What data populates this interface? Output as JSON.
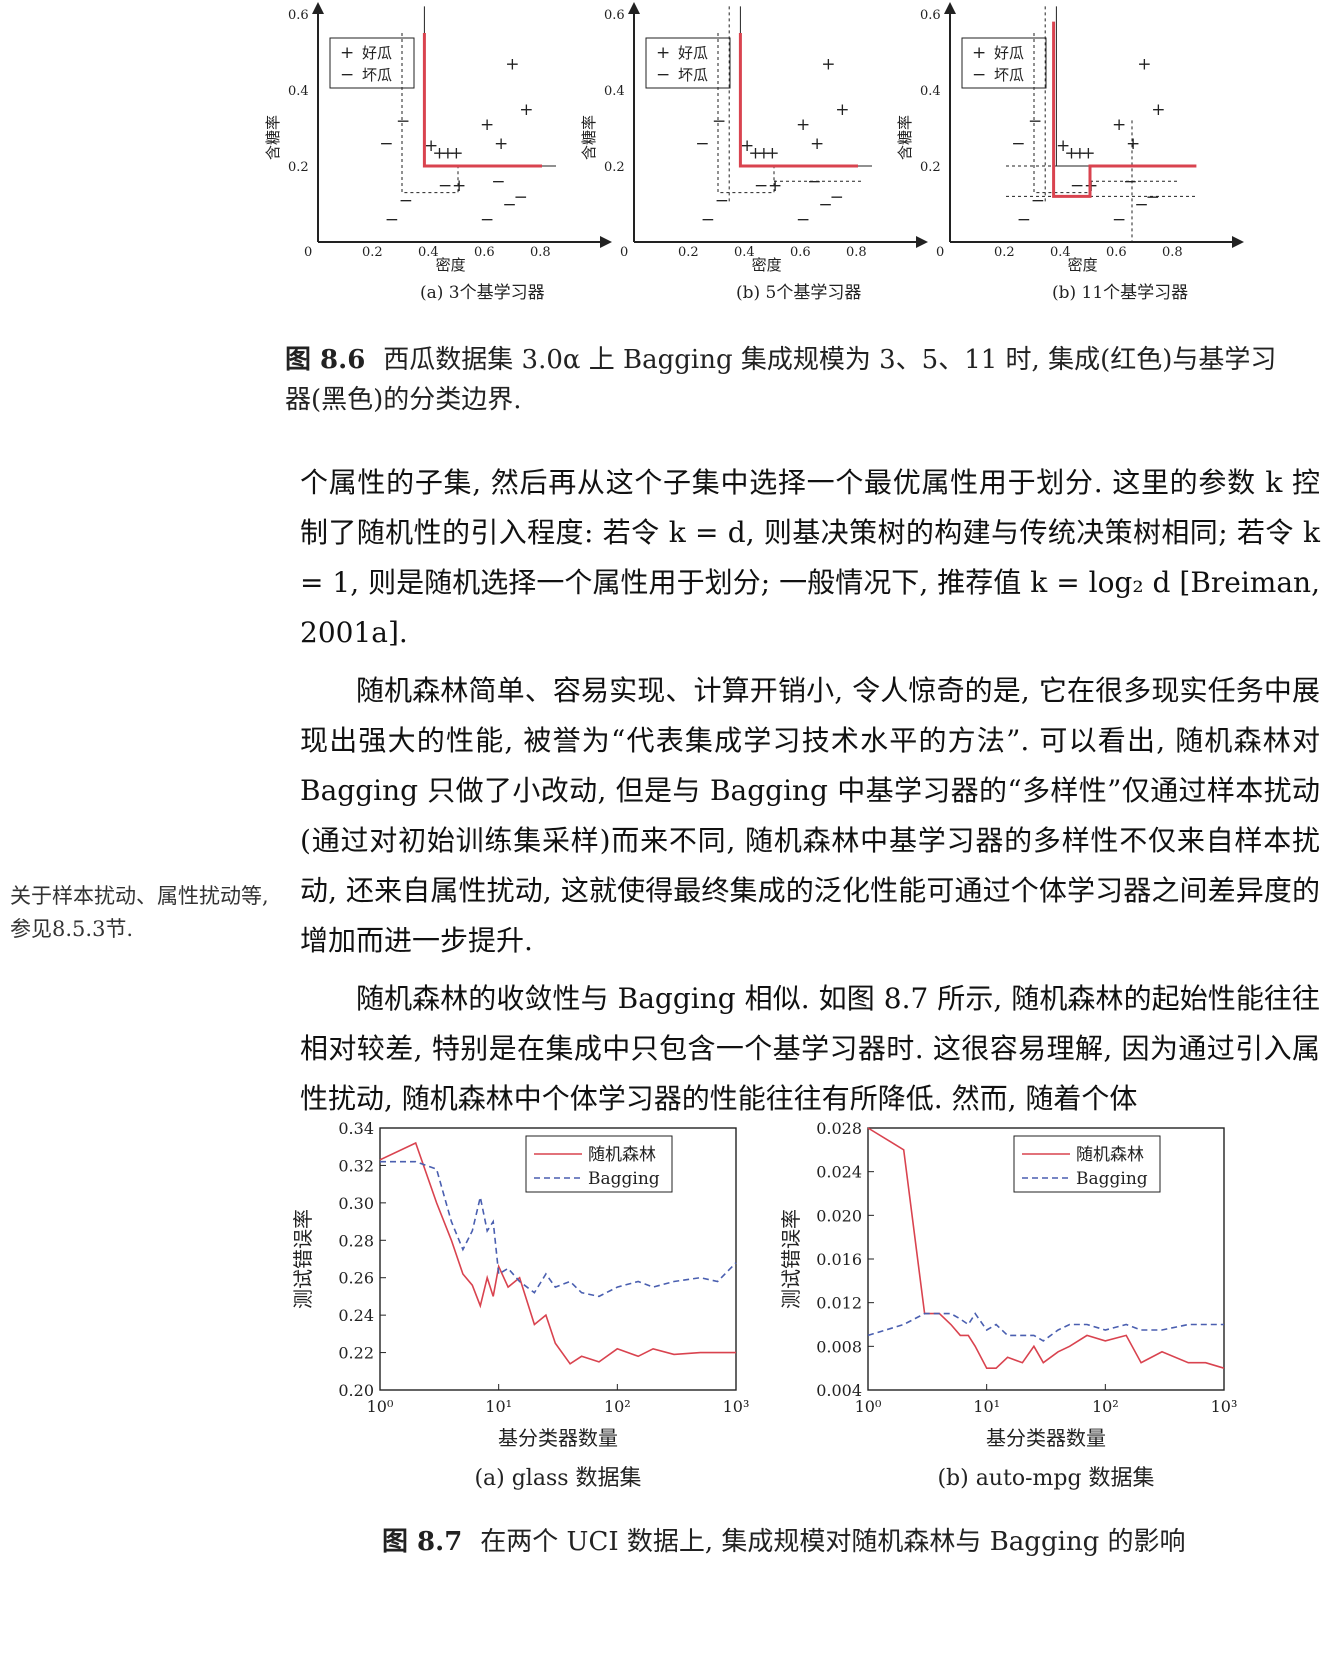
{
  "fig86": {
    "panels": [
      {
        "subcaption": "(a) 3个基学习器",
        "ylabel": "含糖率",
        "xlabel": "密度",
        "legend": [
          "好瓜",
          "坏瓜"
        ],
        "xticks": [
          "0",
          "0.2",
          "0.4",
          "0.6",
          "0.8"
        ],
        "yticks": [
          "0.2",
          "0.4",
          "0.6"
        ]
      },
      {
        "subcaption": "(b) 5个基学习器",
        "ylabel": "含糖率",
        "xlabel": "密度",
        "legend": [
          "好瓜",
          "坏瓜"
        ],
        "xticks": [
          "0",
          "0.2",
          "0.4",
          "0.6",
          "0.8"
        ],
        "yticks": [
          "0.2",
          "0.4",
          "0.6"
        ]
      },
      {
        "subcaption": "(b) 11个基学习器",
        "ylabel": "含糖率",
        "xlabel": "密度",
        "legend": [
          "好瓜",
          "坏瓜"
        ],
        "xticks": [
          "0",
          "0.2",
          "0.4",
          "0.6",
          "0.8"
        ],
        "yticks": [
          "0.2",
          "0.4",
          "0.6"
        ]
      }
    ],
    "label": "图 8.6",
    "caption": "西瓜数据集 3.0α 上 Bagging 集成规模为 3、5、11 时, 集成(红色)与基学习器(黑色)的分类边界."
  },
  "body": {
    "p1": "个属性的子集, 然后再从这个子集中选择一个最优属性用于划分. 这里的参数 k 控制了随机性的引入程度: 若令 k = d, 则基决策树的构建与传统决策树相同; 若令 k = 1, 则是随机选择一个属性用于划分; 一般情况下, 推荐值 k = log₂ d [Breiman, 2001a].",
    "p2": "随机森林简单、容易实现、计算开销小, 令人惊奇的是, 它在很多现实任务中展现出强大的性能, 被誉为“代表集成学习技术水平的方法”. 可以看出, 随机森林对 Bagging 只做了小改动, 但是与 Bagging 中基学习器的“多样性”仅通过样本扰动(通过对初始训练集采样)而来不同, 随机森林中基学习器的多样性不仅来自样本扰动, 还来自属性扰动, 这就使得最终集成的泛化性能可通过个体学习器之间差异度的增加而进一步提升.",
    "p3": "随机森林的收敛性与 Bagging 相似. 如图 8.7 所示, 随机森林的起始性能往往相对较差, 特别是在集成中只包含一个基学习器时. 这很容易理解, 因为通过引入属性扰动, 随机森林中个体学习器的性能往往有所降低. 然而, 随着个体"
  },
  "margin_note": "关于样本扰动、属性扰动等, 参见8.5.3节.",
  "fig87": {
    "label": "图 8.7",
    "caption": "在两个 UCI 数据上, 集成规模对随机森林与 Bagging 的影响",
    "colors": {
      "rf": "#d9434f",
      "bagging": "#4a5fb0"
    },
    "chart_data": [
      {
        "type": "line",
        "subcaption": "(a) glass 数据集",
        "xlabel": "基分类器数量",
        "ylabel": "测试错误率",
        "xscale": "log",
        "xlim": [
          1,
          1000
        ],
        "ylim": [
          0.2,
          0.34
        ],
        "xticks": [
          "10⁰",
          "10¹",
          "10²",
          "10³"
        ],
        "yticks": [
          "0.20",
          "0.22",
          "0.24",
          "0.26",
          "0.28",
          "0.30",
          "0.32",
          "0.34"
        ],
        "series": [
          {
            "name": "随机森林",
            "x": [
              1,
              2,
              3,
              4,
              5,
              6,
              7,
              8,
              9,
              10,
              12,
              15,
              20,
              25,
              30,
              40,
              50,
              70,
              100,
              150,
              200,
              300,
              500,
              700,
              1000
            ],
            "values": [
              0.323,
              0.332,
              0.3,
              0.28,
              0.262,
              0.256,
              0.245,
              0.26,
              0.25,
              0.266,
              0.255,
              0.26,
              0.235,
              0.24,
              0.225,
              0.214,
              0.218,
              0.215,
              0.222,
              0.218,
              0.222,
              0.219,
              0.22,
              0.22,
              0.22
            ]
          },
          {
            "name": "Bagging",
            "x": [
              1,
              2,
              3,
              4,
              5,
              6,
              7,
              8,
              9,
              10,
              12,
              15,
              20,
              25,
              30,
              40,
              50,
              70,
              100,
              150,
              200,
              300,
              500,
              700,
              1000
            ],
            "values": [
              0.322,
              0.322,
              0.318,
              0.29,
              0.275,
              0.285,
              0.303,
              0.285,
              0.29,
              0.262,
              0.265,
              0.258,
              0.252,
              0.262,
              0.255,
              0.258,
              0.252,
              0.25,
              0.255,
              0.258,
              0.255,
              0.258,
              0.26,
              0.258,
              0.268
            ]
          }
        ]
      },
      {
        "type": "line",
        "subcaption": "(b) auto-mpg 数据集",
        "xlabel": "基分类器数量",
        "ylabel": "测试错误率",
        "xscale": "log",
        "xlim": [
          1,
          1000
        ],
        "ylim": [
          0.004,
          0.028
        ],
        "xticks": [
          "10⁰",
          "10¹",
          "10²",
          "10³"
        ],
        "yticks": [
          "0.004",
          "0.008",
          "0.012",
          "0.016",
          "0.020",
          "0.024",
          "0.028"
        ],
        "series": [
          {
            "name": "随机森林",
            "x": [
              1,
              2,
              3,
              4,
              5,
              6,
              7,
              8,
              10,
              12,
              15,
              20,
              25,
              30,
              40,
              50,
              70,
              100,
              150,
              200,
              300,
              500,
              700,
              1000
            ],
            "values": [
              0.028,
              0.026,
              0.011,
              0.011,
              0.01,
              0.009,
              0.009,
              0.008,
              0.006,
              0.006,
              0.007,
              0.0065,
              0.008,
              0.0065,
              0.0075,
              0.008,
              0.009,
              0.0085,
              0.009,
              0.0065,
              0.0075,
              0.0065,
              0.0065,
              0.006
            ]
          },
          {
            "name": "Bagging",
            "x": [
              1,
              2,
              3,
              4,
              5,
              6,
              7,
              8,
              10,
              12,
              15,
              20,
              25,
              30,
              40,
              50,
              70,
              100,
              150,
              200,
              300,
              500,
              700,
              1000
            ],
            "values": [
              0.009,
              0.01,
              0.011,
              0.011,
              0.011,
              0.0105,
              0.01,
              0.011,
              0.0095,
              0.01,
              0.009,
              0.009,
              0.009,
              0.0085,
              0.0095,
              0.01,
              0.01,
              0.0095,
              0.01,
              0.0095,
              0.0095,
              0.01,
              0.01,
              0.01
            ]
          }
        ]
      }
    ]
  }
}
